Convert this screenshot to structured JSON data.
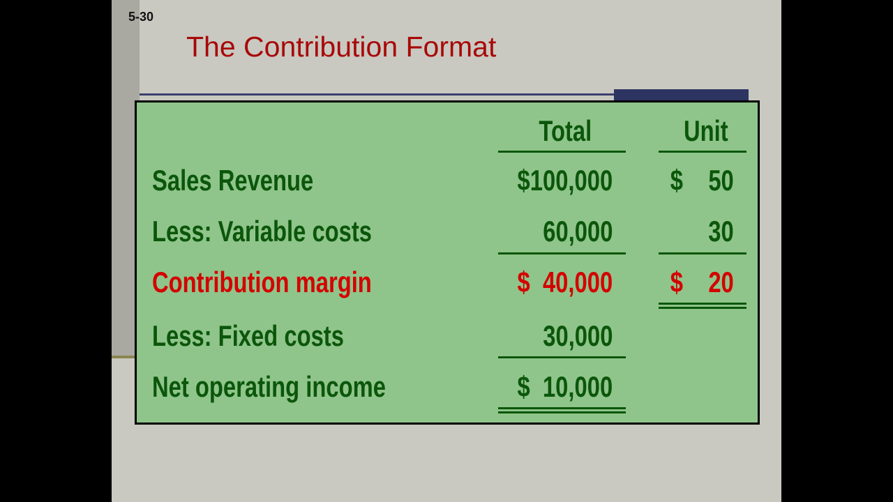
{
  "slide_number": "5-30",
  "title": "The Contribution Format",
  "columns": {
    "total": "Total",
    "unit": "Unit"
  },
  "rows": [
    {
      "label": "Sales Revenue",
      "total": "$100,000",
      "unit": "$    50",
      "highlight": false
    },
    {
      "label": "Less:  Variable costs",
      "total": "60,000",
      "unit": "30",
      "highlight": false
    },
    {
      "label": "Contribution margin",
      "total": "$  40,000",
      "unit": "$    20",
      "highlight": true
    },
    {
      "label": "Less:  Fixed costs",
      "total": "30,000",
      "unit": "",
      "highlight": false
    },
    {
      "label": "Net operating income",
      "total": "$  10,000",
      "unit": "",
      "highlight": false
    }
  ],
  "colors": {
    "text": "#0b560b",
    "highlight": "#d40000",
    "title": "#a80808",
    "box": "#8fc58a"
  }
}
